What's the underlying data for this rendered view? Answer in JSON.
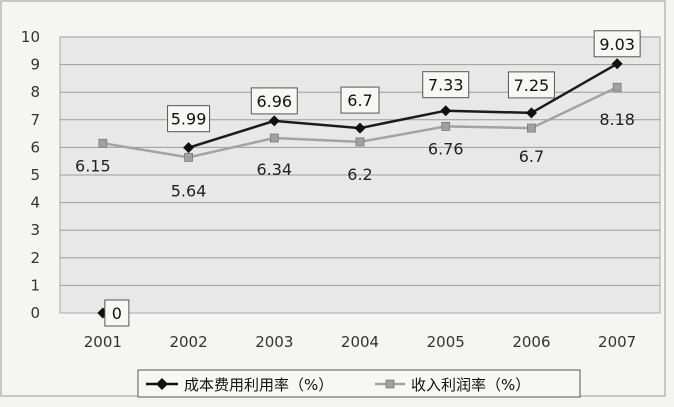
{
  "chart_data": {
    "type": "line",
    "title": "",
    "xlabel": "",
    "ylabel": "",
    "categories": [
      "2001",
      "2002",
      "2003",
      "2004",
      "2005",
      "2006",
      "2007"
    ],
    "ylim": [
      0,
      10
    ],
    "yticks": [
      0,
      1,
      2,
      3,
      4,
      5,
      6,
      7,
      8,
      9,
      10
    ],
    "grid": true,
    "legend_placement": "bottom",
    "series": [
      {
        "name": "成本费用利用率（%）",
        "values": [
          0,
          5.99,
          6.96,
          6.7,
          7.33,
          7.25,
          9.03
        ],
        "labels": [
          "0",
          "5.99",
          "6.96",
          "6.7",
          "7.33",
          "7.25",
          "9.03"
        ],
        "color": "#111111",
        "marker": "diamond",
        "boxed_labels": true
      },
      {
        "name": "收入利润率（%）",
        "values": [
          6.15,
          5.64,
          6.34,
          6.2,
          6.76,
          6.7,
          8.18
        ],
        "labels": [
          "6.15",
          "5.64",
          "6.34",
          "6.2",
          "6.76",
          "6.7",
          "8.18"
        ],
        "color": "#8f8f8f",
        "marker": "square",
        "boxed_labels": false
      }
    ]
  }
}
